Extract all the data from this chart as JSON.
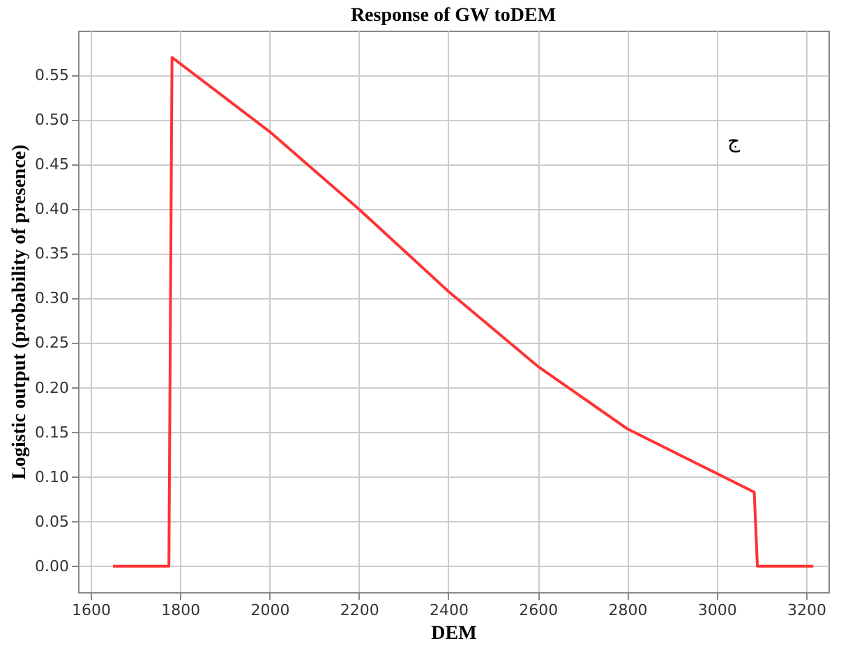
{
  "chart_data": {
    "type": "line",
    "title": "Response of GW toDEM",
    "xlabel": "DEM",
    "ylabel": "Logistic output (probability of presence)",
    "annotations": [
      "ج"
    ],
    "x": [
      1650,
      1775,
      1782,
      2000,
      2200,
      2400,
      2600,
      2800,
      3000,
      3084,
      3091,
      3216
    ],
    "series": [
      {
        "color": "#ff3333",
        "values": [
          0,
          0,
          0.57,
          0.487,
          0.4,
          0.308,
          0.224,
          0.154,
          0.104,
          0.083,
          0,
          0
        ]
      }
    ],
    "xlim": [
      1572,
      3250
    ],
    "ylim": [
      -0.029,
      0.6
    ],
    "xticks": [
      1600,
      1800,
      2000,
      2200,
      2400,
      2600,
      2800,
      3000,
      3200
    ],
    "yticks": [
      {
        "value": 0,
        "label": "0.00"
      },
      {
        "value": 0.05,
        "label": "0.05"
      },
      {
        "value": 0.1,
        "label": "0.10"
      },
      {
        "value": 0.15,
        "label": "0.15"
      },
      {
        "value": 0.2,
        "label": "0.20"
      },
      {
        "value": 0.25,
        "label": "0.25"
      },
      {
        "value": 0.3,
        "label": "0.30"
      },
      {
        "value": 0.35,
        "label": "0.35"
      },
      {
        "value": 0.4,
        "label": "0.40"
      },
      {
        "value": 0.45,
        "label": "0.45"
      },
      {
        "value": 0.5,
        "label": "0.50"
      },
      {
        "value": 0.55,
        "label": "0.55"
      }
    ],
    "grid": true,
    "marker": "none",
    "line_style": "solid"
  }
}
